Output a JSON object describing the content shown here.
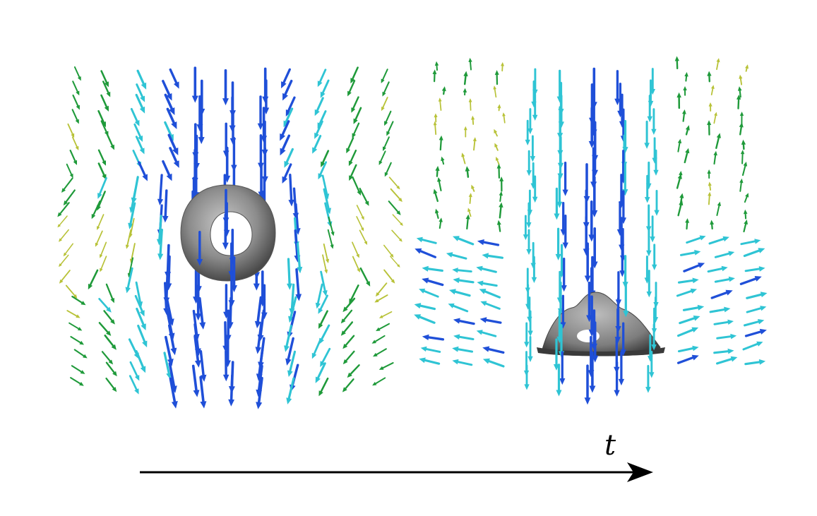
{
  "figure": {
    "time_axis_label": "t",
    "panels": [
      {
        "state": "ring",
        "surface_shape": "torus"
      },
      {
        "state": "impact",
        "surface_shape": "flattened-torus"
      }
    ]
  },
  "colors": {
    "background": "#ffffff",
    "surface": "#8c8c8c",
    "arrow_strong": "#1f4fd8",
    "arrow_mid": "#2fc4d4",
    "arrow_weak": "#1f9a3a",
    "arrow_faint": "#b8c238",
    "axis": "#000000"
  },
  "icons": {
    "arrow": "vector-arrow-icon",
    "time": "arrow-right-icon"
  }
}
